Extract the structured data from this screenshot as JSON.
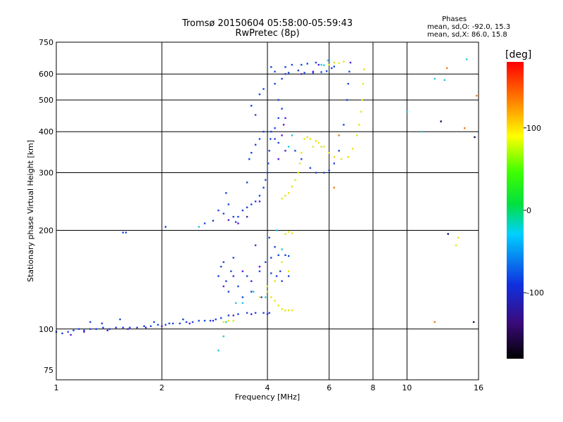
{
  "titles": {
    "line1": "Tromsø 20150604 05:58:00-05:59:43",
    "line2": "RwPretec (8p)"
  },
  "phases": {
    "header": "Phases",
    "o_line": "mean, sd,O: -92.0, 15.3",
    "x_line": "mean, sd,X:  86.0, 15.8"
  },
  "colorbar": {
    "unit": "[deg]",
    "range": [
      -180,
      180
    ],
    "ticks": [
      100,
      0,
      -100
    ],
    "tick_labels": [
      "100",
      "0",
      "-100"
    ]
  },
  "chart_data": {
    "type": "scatter",
    "xlabel": "Frequency [MHz]",
    "ylabel": "Stationary phase Virtual Height [km]",
    "xscale": "log",
    "yscale": "log",
    "xlim": [
      1,
      16
    ],
    "ylim": [
      70,
      750
    ],
    "xticks": [
      1,
      2,
      4,
      6,
      8,
      10,
      16
    ],
    "xtick_labels": [
      "1",
      "2",
      "4",
      "6",
      "8",
      "10",
      "16"
    ],
    "yticks": [
      75,
      100,
      200,
      300,
      400,
      500,
      600,
      750
    ],
    "ytick_labels": [
      "75",
      "100",
      "200",
      "300",
      "400",
      "500",
      "600",
      "750"
    ],
    "grid": true,
    "series": [
      {
        "color": "#1a45e0",
        "points": [
          [
            1.0,
            98
          ],
          [
            1.04,
            97
          ],
          [
            1.08,
            98
          ],
          [
            1.12,
            99
          ],
          [
            1.16,
            100
          ],
          [
            1.2,
            99
          ],
          [
            1.25,
            100
          ],
          [
            1.3,
            100
          ],
          [
            1.36,
            101
          ],
          [
            1.42,
            100
          ],
          [
            1.48,
            101
          ],
          [
            1.55,
            101
          ],
          [
            1.62,
            101
          ],
          [
            1.7,
            101
          ],
          [
            1.78,
            102
          ],
          [
            1.86,
            102
          ],
          [
            1.95,
            103
          ],
          [
            2.05,
            103
          ],
          [
            2.15,
            104
          ],
          [
            2.25,
            104
          ],
          [
            2.35,
            105
          ],
          [
            2.45,
            105
          ],
          [
            2.55,
            106
          ],
          [
            2.65,
            106
          ],
          [
            2.75,
            106
          ],
          [
            2.85,
            107
          ],
          [
            2.95,
            108
          ],
          [
            3.1,
            110
          ],
          [
            3.3,
            111
          ],
          [
            3.5,
            112
          ],
          [
            3.7,
            112
          ],
          [
            3.9,
            112
          ],
          [
            4.05,
            112
          ],
          [
            1.25,
            105
          ],
          [
            1.35,
            104
          ],
          [
            1.52,
            107
          ],
          [
            1.9,
            105
          ],
          [
            2.1,
            104
          ],
          [
            2.3,
            107
          ],
          [
            1.55,
            197
          ],
          [
            1.58,
            197
          ],
          [
            2.05,
            205
          ],
          [
            2.9,
            145
          ],
          [
            2.95,
            155
          ],
          [
            3.0,
            160
          ],
          [
            3.05,
            140
          ],
          [
            3.1,
            130
          ],
          [
            3.15,
            150
          ],
          [
            3.2,
            165
          ],
          [
            3.3,
            135
          ],
          [
            3.4,
            125
          ],
          [
            3.5,
            145
          ],
          [
            3.6,
            130
          ],
          [
            3.8,
            150
          ],
          [
            3.95,
            160
          ],
          [
            3.85,
            125
          ],
          [
            4.1,
            165
          ],
          [
            4.3,
            168
          ],
          [
            4.5,
            168
          ],
          [
            4.6,
            167
          ],
          [
            3.7,
            180
          ],
          [
            4.05,
            190
          ],
          [
            4.2,
            178
          ],
          [
            4.1,
            148
          ],
          [
            4.25,
            145
          ],
          [
            4.35,
            150
          ],
          [
            4.4,
            140
          ],
          [
            4.6,
            145
          ],
          [
            2.65,
            210
          ],
          [
            2.8,
            214
          ],
          [
            2.9,
            230
          ],
          [
            3.0,
            225
          ],
          [
            3.05,
            260
          ],
          [
            3.1,
            240
          ],
          [
            3.2,
            220
          ],
          [
            3.25,
            212
          ],
          [
            3.3,
            220
          ],
          [
            3.4,
            230
          ],
          [
            3.5,
            235
          ],
          [
            3.6,
            240
          ],
          [
            3.7,
            245
          ],
          [
            3.8,
            255
          ],
          [
            3.9,
            270
          ],
          [
            3.95,
            285
          ],
          [
            4.0,
            300
          ],
          [
            4.02,
            320
          ],
          [
            4.05,
            350
          ],
          [
            4.08,
            380
          ],
          [
            4.1,
            400
          ],
          [
            3.5,
            280
          ],
          [
            3.55,
            330
          ],
          [
            3.6,
            345
          ],
          [
            3.7,
            365
          ],
          [
            3.8,
            380
          ],
          [
            3.9,
            400
          ],
          [
            4.2,
            380
          ],
          [
            4.3,
            370
          ],
          [
            4.2,
            410
          ],
          [
            4.3,
            440
          ],
          [
            4.4,
            470
          ],
          [
            3.7,
            450
          ],
          [
            3.6,
            480
          ],
          [
            3.8,
            520
          ],
          [
            3.9,
            540
          ],
          [
            4.3,
            500
          ],
          [
            4.2,
            560
          ],
          [
            4.4,
            580
          ],
          [
            4.1,
            630
          ],
          [
            4.2,
            610
          ],
          [
            4.5,
            600
          ],
          [
            4.6,
            605
          ],
          [
            4.8,
            350
          ],
          [
            5.0,
            330
          ],
          [
            5.3,
            310
          ],
          [
            5.5,
            300
          ],
          [
            5.8,
            300
          ],
          [
            6.0,
            305
          ],
          [
            6.2,
            320
          ],
          [
            6.4,
            350
          ],
          [
            6.6,
            420
          ],
          [
            6.75,
            500
          ],
          [
            6.8,
            560
          ],
          [
            6.85,
            610
          ],
          [
            4.5,
            630
          ],
          [
            4.7,
            640
          ],
          [
            4.9,
            615
          ],
          [
            5.1,
            605
          ],
          [
            5.4,
            605
          ],
          [
            5.7,
            608
          ],
          [
            5.9,
            612
          ],
          [
            6.1,
            625
          ],
          [
            6.2,
            632
          ],
          [
            5.0,
            640
          ],
          [
            5.2,
            645
          ],
          [
            5.5,
            650
          ]
        ]
      },
      {
        "color": "#5a1ad8",
        "points": [
          [
            1.1,
            96
          ],
          [
            1.2,
            98
          ],
          [
            1.4,
            99
          ],
          [
            1.6,
            100
          ],
          [
            1.8,
            101
          ],
          [
            2.0,
            102
          ],
          [
            2.4,
            104
          ],
          [
            2.8,
            106
          ],
          [
            3.2,
            110
          ],
          [
            3.6,
            111
          ],
          [
            4.0,
            111
          ],
          [
            3.0,
            135
          ],
          [
            3.2,
            145
          ],
          [
            3.4,
            150
          ],
          [
            3.6,
            140
          ],
          [
            3.8,
            155
          ],
          [
            3.1,
            215
          ],
          [
            3.3,
            210
          ],
          [
            3.5,
            220
          ],
          [
            3.8,
            245
          ],
          [
            4.4,
            390
          ],
          [
            4.45,
            420
          ],
          [
            4.5,
            440
          ],
          [
            4.3,
            330
          ],
          [
            4.5,
            350
          ],
          [
            5.0,
            600
          ],
          [
            5.4,
            610
          ],
          [
            5.6,
            640
          ],
          [
            6.9,
            650
          ]
        ]
      },
      {
        "color": "#1ec8e0",
        "points": [
          [
            3.05,
            105
          ],
          [
            3.25,
            120
          ],
          [
            3.4,
            120
          ],
          [
            3.65,
            130
          ],
          [
            2.9,
            86
          ],
          [
            3.0,
            95
          ],
          [
            3.95,
            125
          ],
          [
            4.25,
            200
          ],
          [
            4.4,
            175
          ],
          [
            2.55,
            205
          ],
          [
            4.7,
            390
          ],
          [
            5.7,
            640
          ],
          [
            5.8,
            638
          ],
          [
            5.95,
            660
          ],
          [
            12.0,
            580
          ],
          [
            14.8,
            665
          ],
          [
            11.0,
            400
          ],
          [
            12.8,
            575
          ],
          [
            10.0,
            460
          ],
          [
            4.6,
            360
          ]
        ]
      },
      {
        "color": "#e6e60c",
        "points": [
          [
            3.0,
            105
          ],
          [
            3.1,
            106
          ],
          [
            3.2,
            106
          ],
          [
            4.0,
            130
          ],
          [
            4.1,
            125
          ],
          [
            4.2,
            122
          ],
          [
            4.3,
            118
          ],
          [
            4.4,
            115
          ],
          [
            4.5,
            114
          ],
          [
            4.6,
            114
          ],
          [
            4.7,
            114
          ],
          [
            3.8,
            125
          ],
          [
            4.0,
            135
          ],
          [
            4.2,
            140
          ],
          [
            4.4,
            160
          ],
          [
            4.6,
            150
          ],
          [
            4.5,
            195
          ],
          [
            4.6,
            198
          ],
          [
            4.7,
            196
          ],
          [
            4.4,
            250
          ],
          [
            4.5,
            255
          ],
          [
            4.6,
            260
          ],
          [
            4.7,
            272
          ],
          [
            4.8,
            285
          ],
          [
            4.9,
            300
          ],
          [
            4.95,
            320
          ],
          [
            5.0,
            345
          ],
          [
            5.1,
            380
          ],
          [
            5.2,
            385
          ],
          [
            5.3,
            380
          ],
          [
            5.5,
            375
          ],
          [
            5.7,
            360
          ],
          [
            6.0,
            345
          ],
          [
            6.2,
            335
          ],
          [
            6.5,
            330
          ],
          [
            6.8,
            335
          ],
          [
            7.0,
            355
          ],
          [
            7.2,
            390
          ],
          [
            7.3,
            420
          ],
          [
            7.4,
            460
          ],
          [
            7.45,
            500
          ],
          [
            7.5,
            560
          ],
          [
            7.55,
            620
          ],
          [
            5.4,
            360
          ],
          [
            5.6,
            370
          ],
          [
            5.8,
            360
          ],
          [
            6.0,
            640
          ],
          [
            6.2,
            650
          ],
          [
            6.4,
            648
          ],
          [
            6.6,
            655
          ],
          [
            14.0,
            190
          ],
          [
            13.8,
            180
          ]
        ]
      },
      {
        "color": "#f07a14",
        "points": [
          [
            6.4,
            390
          ],
          [
            6.2,
            270
          ],
          [
            13.0,
            625
          ],
          [
            12.0,
            105
          ],
          [
            14.6,
            410
          ],
          [
            15.8,
            515
          ]
        ]
      },
      {
        "color": "#0a0a5a",
        "points": [
          [
            12.5,
            430
          ],
          [
            15.5,
            105
          ],
          [
            15.6,
            385
          ],
          [
            13.1,
            195
          ]
        ]
      }
    ]
  }
}
